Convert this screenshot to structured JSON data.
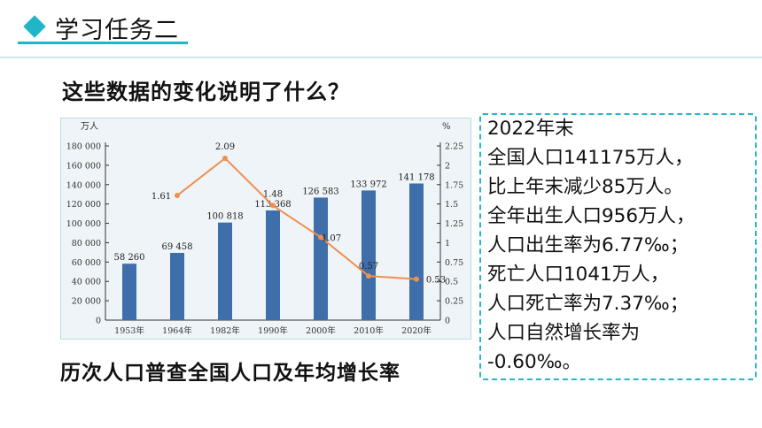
{
  "header": {
    "title": "学习任务二",
    "accent_color": "#1fb6c8",
    "icon": "diamond-icon"
  },
  "question": "这些数据的变化说明了什么？",
  "chart_caption": "历次人口普查全国人口及年均增长率",
  "chart_data": {
    "type": "bar",
    "title": "",
    "categories": [
      "1953年",
      "1964年",
      "1982年",
      "1990年",
      "2000年",
      "2010年",
      "2020年"
    ],
    "series": [
      {
        "type": "bar",
        "values": [
          58260,
          69458,
          100818,
          113368,
          126583,
          133972,
          141178
        ],
        "labels": [
          "58 260",
          "69 458",
          "100 818",
          "113 368",
          "126 583",
          "133 972",
          "141 178"
        ],
        "color": "#3f6faa"
      },
      {
        "type": "line",
        "x": [
          "1964年",
          "1982年",
          "1990年",
          "2000年",
          "2010年",
          "2020年"
        ],
        "values": [
          1.61,
          2.09,
          1.48,
          1.07,
          0.57,
          0.53
        ],
        "labels": [
          "1.61",
          "2.09",
          "1.48",
          "1.07",
          "0.57",
          "0.53"
        ],
        "color": "#f0904e"
      }
    ],
    "ylabel_left": "万人",
    "ylabel_right": "%",
    "ylim_left": [
      0,
      180000
    ],
    "ylim_right": [
      0,
      2.25
    ],
    "yticks_left": [
      "0",
      "20 000",
      "40 000",
      "60 000",
      "80 000",
      "100 000",
      "120 000",
      "140 000",
      "160 000",
      "180 000"
    ],
    "yticks_right": [
      "0",
      "0.25",
      "0.5",
      "0.75",
      "1",
      "1.25",
      "1.5",
      "1.75",
      "2",
      "2.25"
    ],
    "grid": false,
    "legend": "none"
  },
  "info": {
    "lines": [
      "2022年末",
      "全国人口141175万人，",
      "比上年末减少85万人。",
      "全年出生人口956万人，",
      "人口出生率为6.77‰；",
      "死亡人口1041万人，",
      "人口死亡率为7.37‰；",
      "人口自然增长率为",
      "-0.60‰。"
    ],
    "border_color": "#26b8c8"
  }
}
